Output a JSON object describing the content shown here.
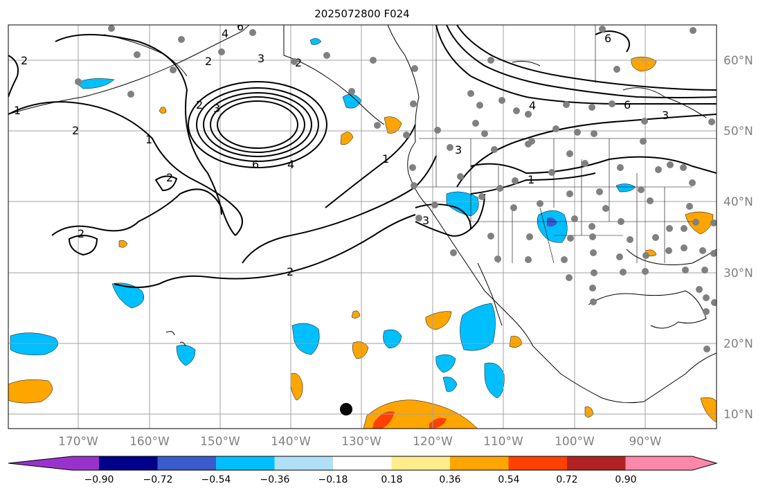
{
  "title": "2025072800 F024",
  "latitude_labels": [
    "60°N",
    "50°N",
    "40°N",
    "30°N",
    "20°N",
    "10°N"
  ],
  "longitude_labels": [
    "170°W",
    "160°W",
    "150°W",
    "140°W",
    "130°W",
    "120°W",
    "110°W",
    "100°W",
    "90°W"
  ],
  "colorbar": {
    "tick_labels": [
      "−0.90",
      "−0.72",
      "−0.54",
      "−0.36",
      "−0.18",
      "0.18",
      "0.36",
      "0.54",
      "0.72",
      "0.90"
    ],
    "colors": [
      "#9932cc",
      "#00008b",
      "#3a5bcc",
      "#00bfff",
      "#b0e0f8",
      "#ffffff",
      "#ffec8b",
      "#ffa500",
      "#ff4000",
      "#b22222",
      "#ff88aa"
    ]
  },
  "contour_labels": [
    "2",
    "2",
    "2",
    "2",
    "1",
    "1",
    "1",
    "1",
    "2",
    "2",
    "3",
    "6",
    "4",
    "6",
    "4",
    "3",
    "4",
    "6",
    "3",
    "6",
    "3",
    "3",
    "2",
    "2"
  ],
  "colors": {
    "land_line": "#000000",
    "grid": "#a0a0a0",
    "station": "#808080",
    "negative_fill": "#00bfff",
    "positive_fill": "#ffa500",
    "strong_positive": "#ff4000"
  }
}
